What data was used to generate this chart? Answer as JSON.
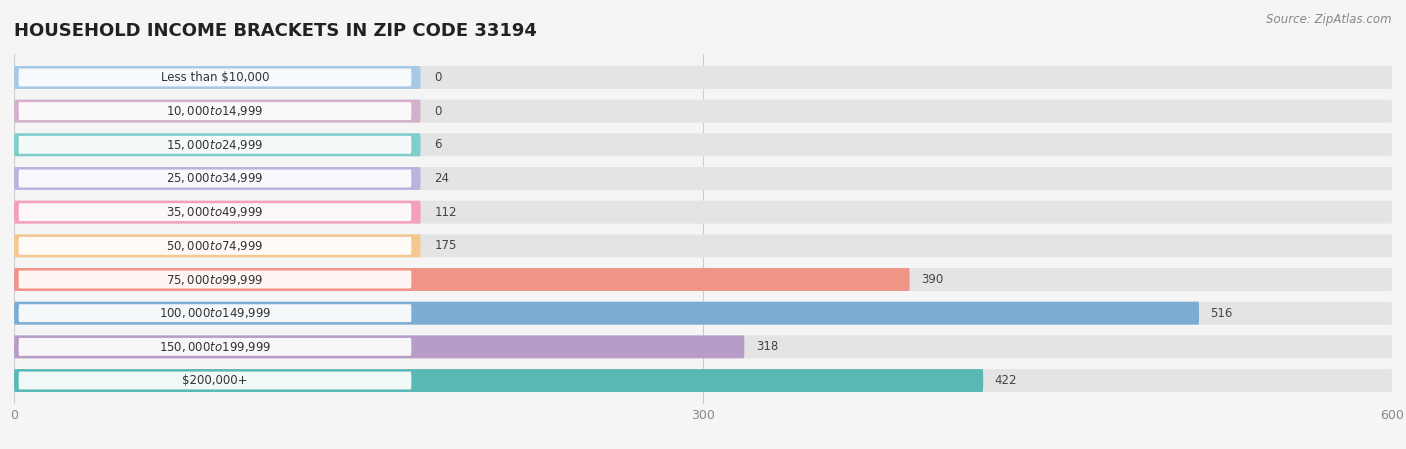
{
  "title": "HOUSEHOLD INCOME BRACKETS IN ZIP CODE 33194",
  "source": "Source: ZipAtlas.com",
  "categories": [
    "Less than $10,000",
    "$10,000 to $14,999",
    "$15,000 to $24,999",
    "$25,000 to $34,999",
    "$35,000 to $49,999",
    "$50,000 to $74,999",
    "$75,000 to $99,999",
    "$100,000 to $149,999",
    "$150,000 to $199,999",
    "$200,000+"
  ],
  "values": [
    0,
    0,
    6,
    24,
    112,
    175,
    390,
    516,
    318,
    422
  ],
  "bar_colors": [
    "#a8c8e8",
    "#d4b0cc",
    "#7ececa",
    "#b8b4e0",
    "#f4a0b8",
    "#f4c890",
    "#f09488",
    "#7aacd4",
    "#b89cc8",
    "#5ab8b4"
  ],
  "background_color": "#f5f5f5",
  "bar_bg_color": "#e4e4e4",
  "xlim": [
    0,
    600
  ],
  "xticks": [
    0,
    300,
    600
  ],
  "title_fontsize": 13,
  "label_fontsize": 8.5,
  "value_fontsize": 8.5,
  "source_fontsize": 8.5
}
